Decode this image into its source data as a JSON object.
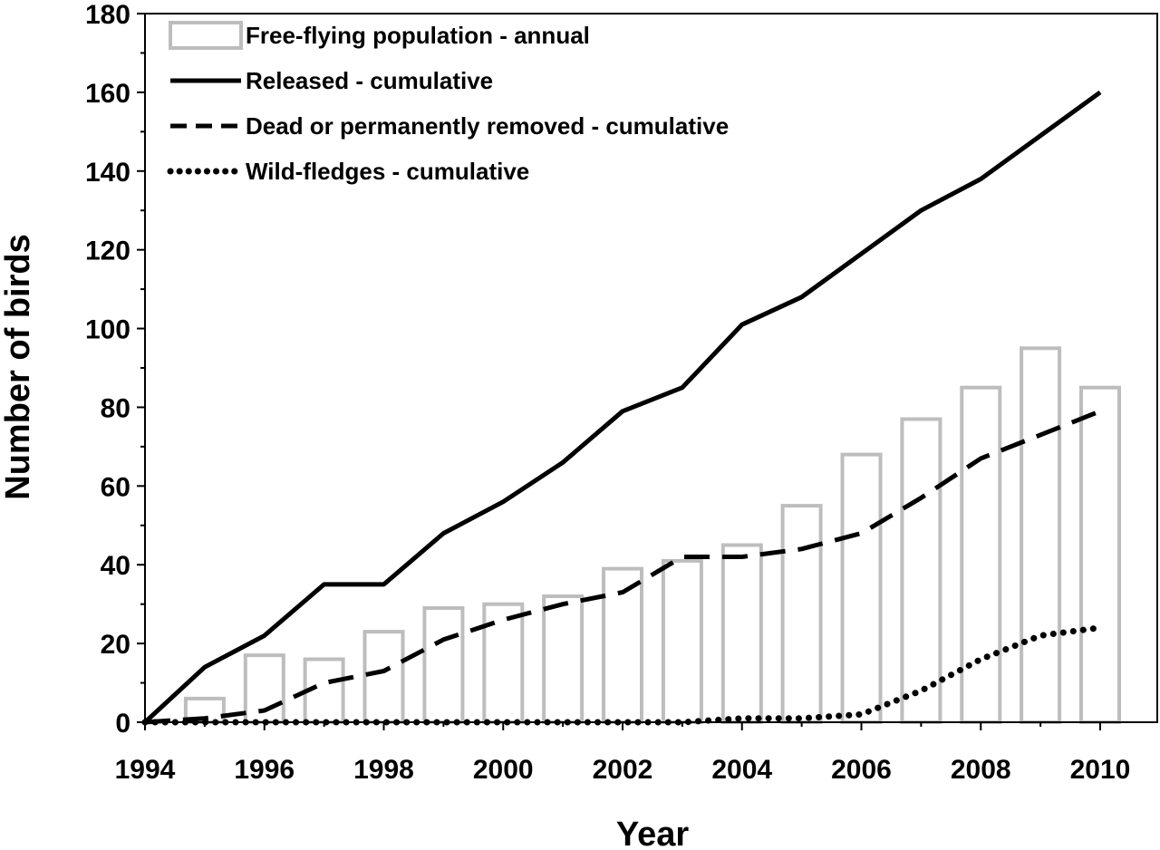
{
  "chart_data": {
    "type": "bar",
    "xlabel": "Year",
    "ylabel": "Number of birds",
    "xlim": [
      1994,
      2010
    ],
    "ylim": [
      0,
      180
    ],
    "x_ticks": [
      1994,
      1996,
      1998,
      2000,
      2002,
      2004,
      2006,
      2008,
      2010
    ],
    "y_ticks": [
      0,
      20,
      40,
      60,
      80,
      100,
      120,
      140,
      160,
      180
    ],
    "grid": false,
    "legend_position": "top-left",
    "series": [
      {
        "name": "Free-flying population - annual",
        "kind": "bar",
        "style": "hollow",
        "color": "#bdbdbd",
        "x": [
          1995,
          1996,
          1997,
          1998,
          1999,
          2000,
          2001,
          2002,
          2003,
          2004,
          2005,
          2006,
          2007,
          2008,
          2009,
          2010
        ],
        "values": [
          6,
          17,
          16,
          23,
          29,
          30,
          32,
          39,
          41,
          45,
          55,
          68,
          77,
          85,
          95,
          85
        ]
      },
      {
        "name": "Released - cumulative",
        "kind": "line",
        "style": "solid",
        "color": "#000000",
        "x": [
          1994,
          1995,
          1996,
          1997,
          1998,
          1999,
          2000,
          2001,
          2002,
          2003,
          2004,
          2005,
          2006,
          2007,
          2008,
          2009,
          2010
        ],
        "values": [
          0,
          14,
          22,
          35,
          35,
          48,
          56,
          66,
          79,
          85,
          101,
          108,
          119,
          130,
          138,
          149,
          160
        ]
      },
      {
        "name": "Dead or permanently removed - cumulative",
        "kind": "line",
        "style": "dashed",
        "color": "#000000",
        "x": [
          1994,
          1995,
          1996,
          1997,
          1998,
          1999,
          2000,
          2001,
          2002,
          2003,
          2004,
          2005,
          2006,
          2007,
          2008,
          2009,
          2010
        ],
        "values": [
          0,
          1,
          3,
          10,
          13,
          21,
          26,
          30,
          33,
          42,
          42,
          44,
          48,
          57,
          67,
          73,
          79
        ]
      },
      {
        "name": "Wild-fledges - cumulative",
        "kind": "line",
        "style": "dotted",
        "color": "#000000",
        "x": [
          1994,
          1995,
          1996,
          1997,
          1998,
          1999,
          2000,
          2001,
          2002,
          2003,
          2004,
          2005,
          2006,
          2007,
          2008,
          2009,
          2010
        ],
        "values": [
          0,
          0,
          0,
          0,
          0,
          0,
          0,
          0,
          0,
          0,
          1,
          1,
          2,
          8,
          16,
          22,
          24
        ]
      }
    ]
  }
}
